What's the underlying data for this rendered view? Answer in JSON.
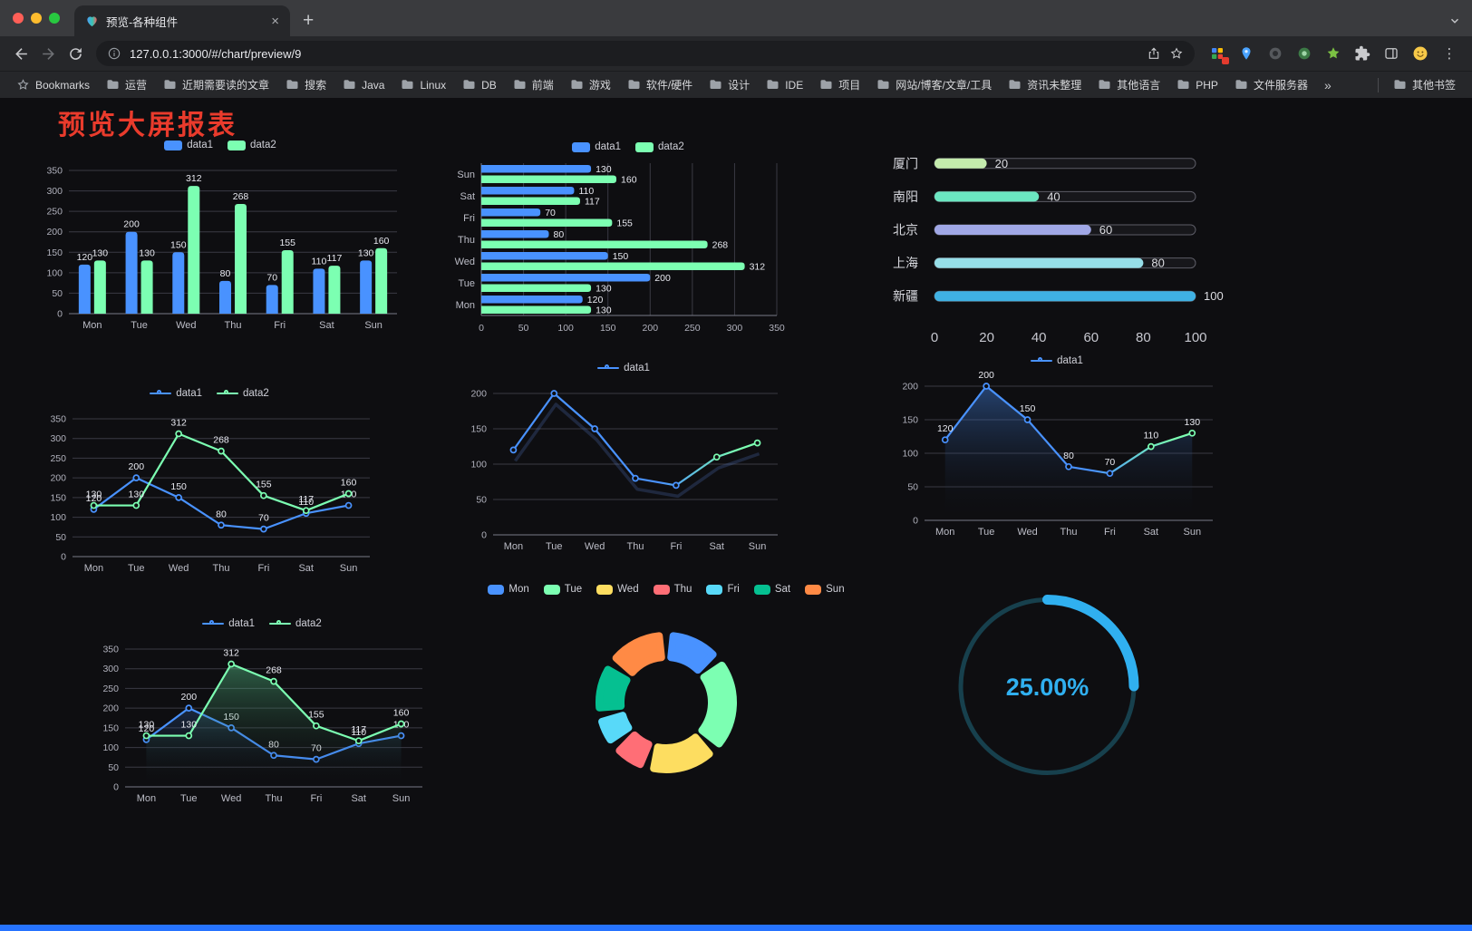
{
  "browser": {
    "tab": {
      "title": "预览-各种组件"
    },
    "icons": {
      "close_glyph": "×",
      "new_tab_glyph": "+",
      "kebab_glyph": "⋮"
    },
    "url": "127.0.0.1:3000/#/chart/preview/9",
    "bookmarks_label": "Bookmarks",
    "bookmarks": [
      "运营",
      "近期需要读的文章",
      "搜索",
      "Java",
      "Linux",
      "DB",
      "前端",
      "游戏",
      "软件/硬件",
      "设计",
      "IDE",
      "项目",
      "网站/博客/文章/工具",
      "资讯未整理",
      "其他语言",
      "PHP",
      "文件服务器"
    ],
    "bookmarks_overflow": "»",
    "other_bookmarks": "其他书签"
  },
  "page": {
    "title": "预览大屏报表",
    "title_color": "#e93b2c"
  },
  "colors": {
    "data1": "#4992ff",
    "data2": "#7cffb2"
  },
  "chart_data": [
    {
      "id": "bar-grouped",
      "type": "bar",
      "categories": [
        "Mon",
        "Tue",
        "Wed",
        "Thu",
        "Fri",
        "Sat",
        "Sun"
      ],
      "series": [
        {
          "name": "data1",
          "color": "#4992ff",
          "values": [
            120,
            200,
            150,
            80,
            70,
            110,
            130
          ]
        },
        {
          "name": "data2",
          "color": "#7cffb2",
          "values": [
            130,
            130,
            312,
            268,
            155,
            117,
            160
          ]
        }
      ],
      "ylim": [
        0,
        350
      ],
      "ytick_step": 50,
      "value_labels": true,
      "legend_position": "top"
    },
    {
      "id": "hbar-grouped",
      "type": "hbar",
      "categories": [
        "Mon",
        "Tue",
        "Wed",
        "Thu",
        "Fri",
        "Sat",
        "Sun"
      ],
      "series": [
        {
          "name": "data1",
          "color": "#4992ff",
          "values": [
            120,
            200,
            150,
            80,
            70,
            110,
            130
          ]
        },
        {
          "name": "data2",
          "color": "#7cffb2",
          "values": [
            130,
            130,
            312,
            268,
            155,
            117,
            160
          ]
        }
      ],
      "xlim": [
        0,
        350
      ],
      "xtick_step": 50,
      "value_labels": true,
      "legend_position": "top"
    },
    {
      "id": "progress",
      "type": "progress",
      "rows": [
        {
          "label": "厦门",
          "value": 20,
          "color": "#c4ebad"
        },
        {
          "label": "南阳",
          "value": 40,
          "color": "#6be6c1"
        },
        {
          "label": "北京",
          "value": 60,
          "color": "#a0a7e6"
        },
        {
          "label": "上海",
          "value": 80,
          "color": "#96dee8"
        },
        {
          "label": "新疆",
          "value": 100,
          "color": "#3fb1e3"
        }
      ],
      "max": 100,
      "ticks": [
        0,
        20,
        40,
        60,
        80,
        100
      ]
    },
    {
      "id": "line-two",
      "type": "line",
      "categories": [
        "Mon",
        "Tue",
        "Wed",
        "Thu",
        "Fri",
        "Sat",
        "Sun"
      ],
      "series": [
        {
          "name": "data1",
          "color": "#4992ff",
          "values": [
            120,
            200,
            150,
            80,
            70,
            110,
            130
          ],
          "labels": true
        },
        {
          "name": "data2",
          "color": "#7cffb2",
          "values": [
            130,
            130,
            312,
            268,
            155,
            117,
            160
          ],
          "labels": true
        }
      ],
      "ylim": [
        0,
        350
      ],
      "ytick_step": 50,
      "legend_position": "top"
    },
    {
      "id": "line-one",
      "type": "line",
      "categories": [
        "Mon",
        "Tue",
        "Wed",
        "Thu",
        "Fri",
        "Sat",
        "Sun"
      ],
      "series": [
        {
          "name": "data1",
          "colors": [
            "#4992ff",
            "#7cffb2"
          ],
          "gradient": true,
          "gradient_switch": 5,
          "values": [
            120,
            200,
            150,
            80,
            70,
            110,
            130
          ],
          "labels": false
        }
      ],
      "ylim": [
        0,
        200
      ],
      "ytick_step": 50,
      "ghost": true,
      "legend_position": "top"
    },
    {
      "id": "area-one",
      "type": "line",
      "categories": [
        "Mon",
        "Tue",
        "Wed",
        "Thu",
        "Fri",
        "Sat",
        "Sun"
      ],
      "series": [
        {
          "name": "data1",
          "colors": [
            "#4992ff",
            "#7cffb2"
          ],
          "gradient": true,
          "gradient_switch": 5,
          "values": [
            120,
            200,
            150,
            80,
            70,
            110,
            130
          ],
          "labels": true,
          "fill": "rgba(73,146,255,0.40)"
        }
      ],
      "ylim": [
        0,
        200
      ],
      "ytick_step": 50,
      "legend_position": "top"
    },
    {
      "id": "line-two-area",
      "type": "line",
      "categories": [
        "Mon",
        "Tue",
        "Wed",
        "Thu",
        "Fri",
        "Sat",
        "Sun"
      ],
      "series": [
        {
          "name": "data1",
          "color": "#4992ff",
          "values": [
            120,
            200,
            150,
            80,
            70,
            110,
            130
          ],
          "labels": true,
          "fill": "rgba(73,146,255,0.20)"
        },
        {
          "name": "data2",
          "color": "#7cffb2",
          "values": [
            130,
            130,
            312,
            268,
            155,
            117,
            160
          ],
          "labels": true,
          "fill": "rgba(100,230,160,0.38)"
        }
      ],
      "ylim": [
        0,
        350
      ],
      "ytick_step": 50,
      "legend_position": "top"
    },
    {
      "id": "doughnut",
      "type": "doughnut",
      "categories": [
        "Mon",
        "Tue",
        "Wed",
        "Thu",
        "Fri",
        "Sat",
        "Sun"
      ],
      "values": [
        120,
        200,
        150,
        80,
        70,
        110,
        130
      ],
      "colors": [
        "#4992ff",
        "#7cffb2",
        "#fddd60",
        "#ff6e76",
        "#58d9f9",
        "#05c091",
        "#ff8a45"
      ],
      "legend_position": "top"
    },
    {
      "id": "gauge",
      "type": "gauge",
      "value": 25,
      "label": "25.00%",
      "color": "#30b0f0",
      "track_color": "#17404d"
    }
  ]
}
